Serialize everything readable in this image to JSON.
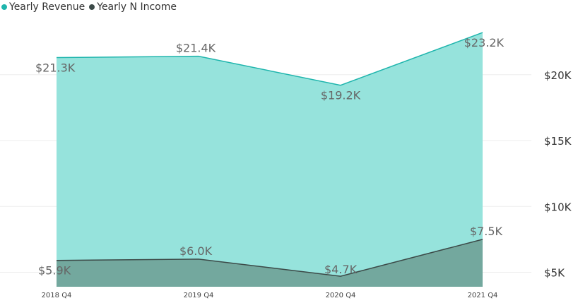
{
  "chart_data": {
    "type": "area",
    "categories": [
      "2018 Q4",
      "2019 Q4",
      "2020 Q4",
      "2021 Q4"
    ],
    "series": [
      {
        "name": "Yearly Revenue",
        "values": [
          21300,
          21400,
          19200,
          23200
        ],
        "labels": [
          "$21.3K",
          "$21.4K",
          "$19.2K",
          "$23.2K"
        ],
        "line_color": "#1fb5ad",
        "fill_color": "#96e3dc"
      },
      {
        "name": "Yearly N Income",
        "values": [
          5900,
          6000,
          4700,
          7500
        ],
        "labels": [
          "$5.9K",
          "$6.0K",
          "$4.7K",
          "$7.5K"
        ],
        "line_color": "#3c4a48",
        "fill_color": "#73a89e"
      }
    ],
    "y_axis": {
      "position": "right",
      "ticks": [
        5000,
        10000,
        15000,
        20000
      ],
      "tick_labels": [
        "$5K",
        "$10K",
        "$15K",
        "$20K"
      ],
      "range": [
        3900,
        24600
      ]
    },
    "grid": true,
    "legend": "top-left",
    "gridline_color": "#eeeeee"
  }
}
